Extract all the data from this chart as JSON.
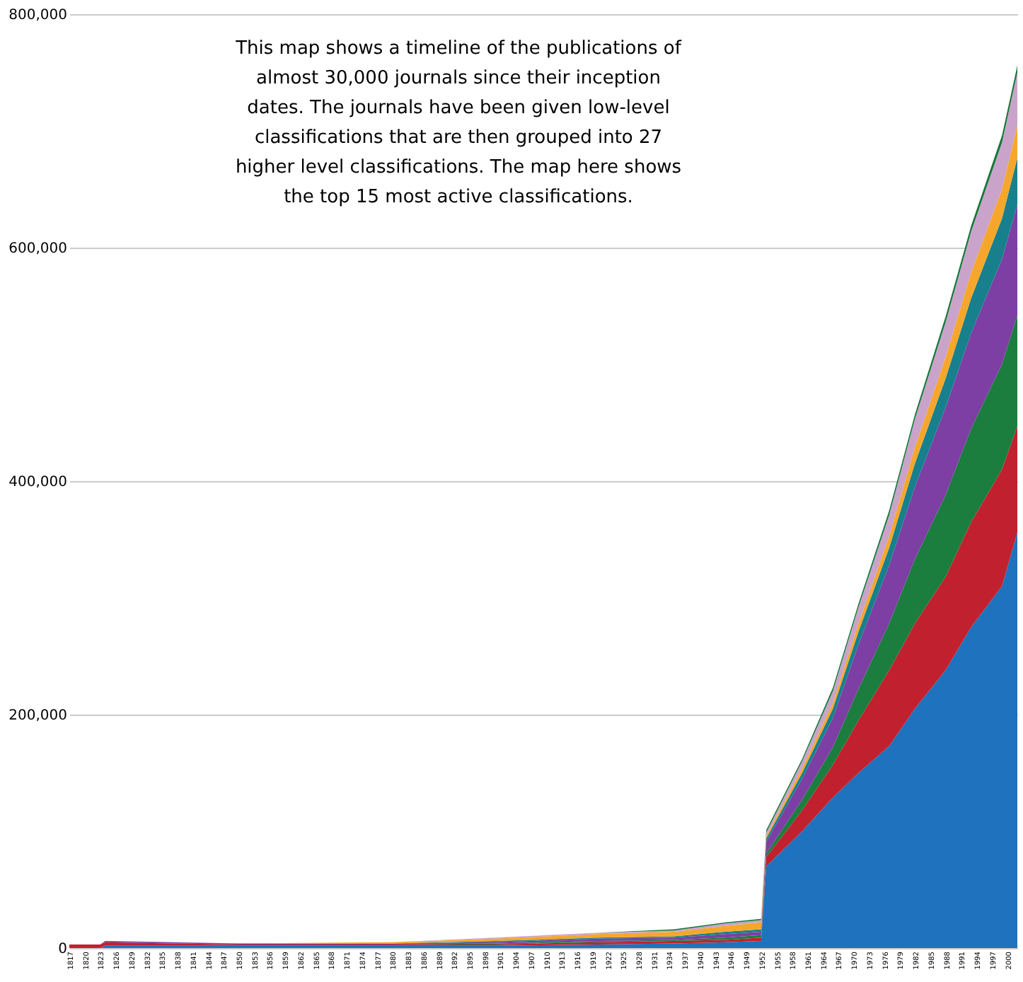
{
  "chart_data": {
    "type": "area",
    "stacked": true,
    "annotations": [
      "This map shows a timeline of the publications of almost 30,000 journals since their inception dates. The journals have been given low-level classifications that are then grouped into 27 higher level classifications. The map here shows the top 15 most active classifications."
    ],
    "x": [
      1817,
      1823,
      1824,
      1850,
      1880,
      1900,
      1920,
      1935,
      1945,
      1952,
      1953,
      1960,
      1966,
      1971,
      1977,
      1982,
      1988,
      1993,
      1999,
      2002
    ],
    "xlim": [
      1817,
      2002
    ],
    "xticks": [
      1817,
      1820,
      1823,
      1826,
      1829,
      1832,
      1835,
      1838,
      1841,
      1844,
      1847,
      1850,
      1853,
      1856,
      1859,
      1862,
      1865,
      1868,
      1871,
      1874,
      1877,
      1880,
      1883,
      1886,
      1889,
      1892,
      1895,
      1898,
      1901,
      1904,
      1907,
      1910,
      1913,
      1916,
      1919,
      1922,
      1925,
      1928,
      1931,
      1934,
      1937,
      1940,
      1943,
      1946,
      1949,
      1952,
      1955,
      1958,
      1961,
      1964,
      1967,
      1970,
      1973,
      1976,
      1979,
      1982,
      1985,
      1988,
      1991,
      1994,
      1997,
      2000
    ],
    "ylim": [
      0,
      800000
    ],
    "yticks": [
      {
        "value": 0,
        "label": "0"
      },
      {
        "value": 200000,
        "label": "200,000"
      },
      {
        "value": 400000,
        "label": "400,000"
      },
      {
        "value": 600000,
        "label": "600,000"
      },
      {
        "value": 800000,
        "label": "800,000"
      }
    ],
    "grid": "y",
    "legend": false,
    "series": [
      {
        "color": "#1f72bd",
        "values": [
          0,
          0,
          2000,
          2000,
          2000,
          2000,
          3000,
          4000,
          5000,
          6000,
          70000,
          100000,
          129000,
          150000,
          173000,
          205000,
          238000,
          275000,
          310000,
          356000
        ]
      },
      {
        "color": "#c1212f",
        "values": [
          3000,
          3000,
          3000,
          1000,
          1000,
          1000,
          2000,
          2000,
          2000,
          3000,
          8000,
          18000,
          28000,
          45000,
          65000,
          73000,
          80000,
          90000,
          100000,
          91000
        ]
      },
      {
        "color": "#1b7d3e",
        "values": [
          0,
          0,
          0,
          0,
          0,
          1000,
          1000,
          1000,
          2000,
          2000,
          3000,
          9000,
          15000,
          27000,
          40000,
          55000,
          70000,
          80000,
          90000,
          95000
        ]
      },
      {
        "color": "#7d3fa3",
        "values": [
          0,
          0,
          1000,
          1000,
          1000,
          1000,
          2000,
          2000,
          3000,
          3000,
          10000,
          18000,
          25000,
          38000,
          50000,
          62000,
          75000,
          82000,
          90000,
          95000
        ]
      },
      {
        "color": "#17808c",
        "values": [
          0,
          0,
          0,
          0,
          0,
          1000,
          1000,
          1000,
          2000,
          2000,
          3000,
          5000,
          8000,
          11000,
          15000,
          20000,
          25000,
          30000,
          35000,
          40000
        ]
      },
      {
        "color": "#f6a72b",
        "values": [
          0,
          0,
          0,
          0,
          1000,
          2000,
          3000,
          4000,
          5000,
          6000,
          2000,
          4000,
          5000,
          7000,
          10000,
          14000,
          18000,
          22000,
          25000,
          28000
        ]
      },
      {
        "color": "#c9a3c9",
        "values": [
          0,
          0,
          0,
          0,
          0,
          1000,
          1000,
          1000,
          2000,
          2000,
          3000,
          6000,
          10000,
          14000,
          18000,
          24000,
          30000,
          35000,
          40000,
          45000
        ]
      },
      {
        "color": "#17773a",
        "values": [
          0,
          0,
          0,
          0,
          0,
          0,
          0,
          1000,
          1000,
          1000,
          2000,
          2000,
          3000,
          3000,
          4000,
          4000,
          5000,
          5000,
          6000,
          6000
        ]
      }
    ]
  }
}
